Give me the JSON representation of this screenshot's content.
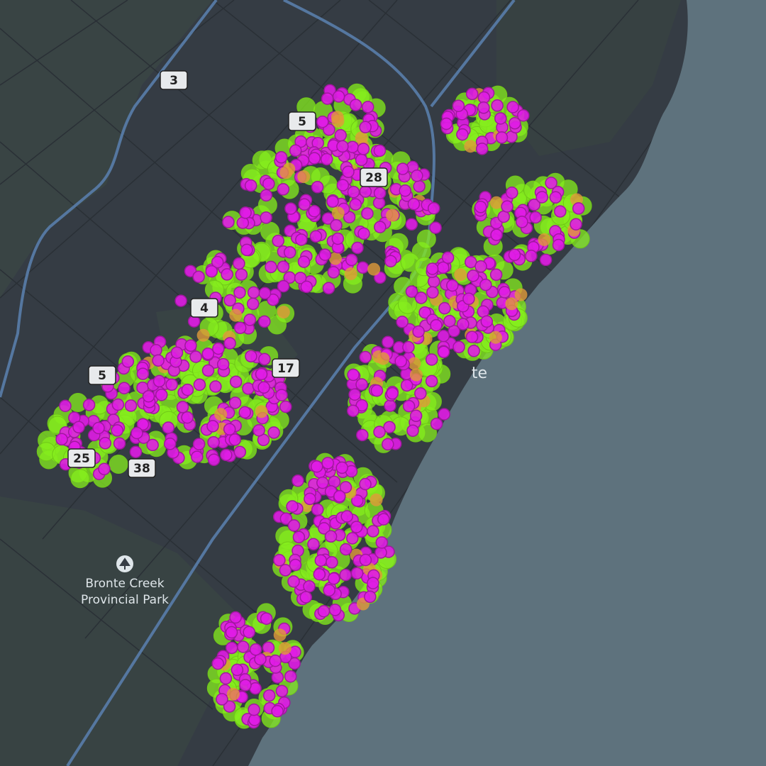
{
  "shields": [
    {
      "label": "3"
    },
    {
      "label": "5"
    },
    {
      "label": "28"
    },
    {
      "label": "4"
    },
    {
      "label": "5"
    },
    {
      "label": "17"
    },
    {
      "label": "25"
    },
    {
      "label": "38"
    }
  ],
  "place_label": "te",
  "park": {
    "lines": [
      "Bronte Creek",
      "Provincial Park"
    ]
  }
}
